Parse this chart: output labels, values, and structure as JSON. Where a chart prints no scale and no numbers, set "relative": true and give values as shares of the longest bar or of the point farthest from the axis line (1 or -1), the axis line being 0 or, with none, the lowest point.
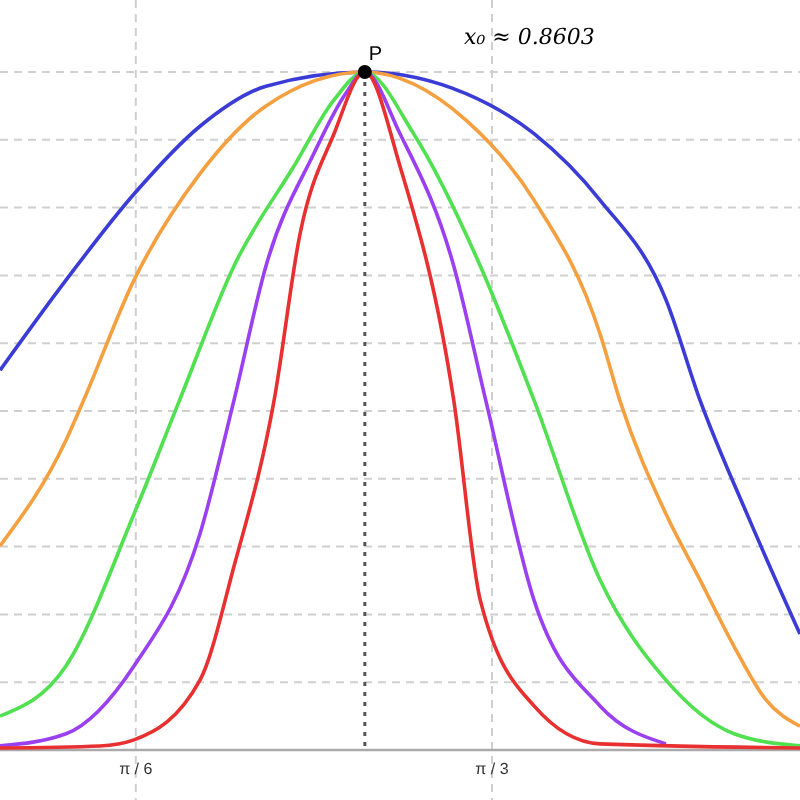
{
  "chart_data": {
    "type": "line",
    "relative": true,
    "grid": true,
    "xlim": [
      0.324,
      1.5
    ],
    "xticks": [
      {
        "value": 0.5236,
        "label": "π / 6"
      },
      {
        "value": 1.0472,
        "label": "π / 3"
      }
    ],
    "ref_lines": [
      {
        "axis": "x",
        "value": 0.8603,
        "label": null,
        "color": "#555555",
        "line_style": "dotted"
      }
    ],
    "annotations": [
      {
        "text": "P",
        "x": 0.8603,
        "y": 1
      },
      "x₀ ≈ 0.8603"
    ],
    "series": [
      {
        "color": "#3b3bd6",
        "x": [
          0.324,
          0.421,
          0.521,
          0.618,
          0.715,
          0.86,
          1.009,
          1.109,
          1.206,
          1.303,
          1.353,
          1.426,
          1.5
        ],
        "values": [
          0.56,
          0.693,
          0.82,
          0.92,
          0.979,
          1,
          0.968,
          0.909,
          0.811,
          0.664,
          0.516,
          0.339,
          0.171
        ]
      },
      {
        "color": "#f5a040",
        "x": [
          0.324,
          0.421,
          0.447,
          0.521,
          0.618,
          0.715,
          0.86,
          1.009,
          1.109,
          1.206,
          1.235,
          1.303,
          1.353,
          1.403,
          1.45,
          1.5
        ],
        "values": [
          0.301,
          0.457,
          0.516,
          0.693,
          0.85,
          0.95,
          1,
          0.929,
          0.811,
          0.614,
          0.516,
          0.348,
          0.251,
          0.153,
          0.074,
          0.035
        ]
      },
      {
        "color": "#50e050",
        "x": [
          0.324,
          0.421,
          0.521,
          0.588,
          0.668,
          0.756,
          0.815,
          0.86,
          0.932,
          1.03,
          1.109,
          1.206,
          1.303,
          1.403,
          1.5
        ],
        "values": [
          0.05,
          0.124,
          0.348,
          0.516,
          0.714,
          0.861,
          0.959,
          1,
          0.909,
          0.714,
          0.516,
          0.251,
          0.103,
          0.024,
          0.006
        ]
      },
      {
        "color": "#9b40f0",
        "x": [
          0.324,
          0.421,
          0.521,
          0.618,
          0.668,
          0.715,
          0.785,
          0.832,
          0.86,
          0.912,
          0.991,
          1.038,
          1.109,
          1.206,
          1.303
        ],
        "values": [
          0.006,
          0.024,
          0.124,
          0.319,
          0.516,
          0.714,
          0.879,
          0.968,
          1,
          0.909,
          0.714,
          0.516,
          0.221,
          0.065,
          0.009
        ]
      },
      {
        "color": "#e83030",
        "x": [
          0.324,
          0.471,
          0.521,
          0.618,
          0.668,
          0.727,
          0.765,
          0.815,
          0.86,
          0.912,
          0.991,
          1.03,
          1.109,
          1.206,
          1.5
        ],
        "values": [
          0.003,
          0.006,
          0.015,
          0.103,
          0.271,
          0.516,
          0.761,
          0.909,
          1,
          0.861,
          0.516,
          0.221,
          0.065,
          0.009,
          0.003
        ]
      },
      {
        "type": "scatter",
        "color": "#000000",
        "x": [
          0.8603
        ],
        "values": [
          1
        ]
      }
    ]
  }
}
